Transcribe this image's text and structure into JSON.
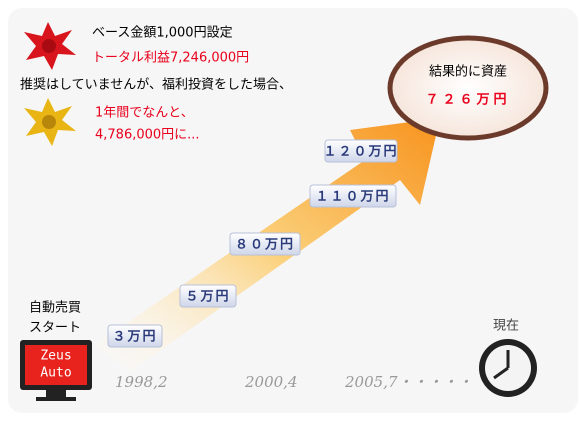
{
  "header": {
    "base": "ベース金額1,000円設定",
    "profit": "トータル利益7,246,000円",
    "note": "推奨はしていませんが、福利投資をした場合、",
    "year_line1": "1年間でなんと、",
    "year_line2": "4,786,000円に..."
  },
  "result": {
    "label": "結果的に資産",
    "amount": "７２６万円"
  },
  "steps": [
    "３万円",
    "５万円",
    "８０万円",
    "１１０万円",
    "１２０万円"
  ],
  "start": {
    "line1": "自動売買",
    "line2": "スタート",
    "logo1": "Zeus",
    "logo2": "Auto"
  },
  "dates": [
    "1998,2",
    "2000,4",
    "2005,7・・・・・"
  ],
  "now": "現在"
}
